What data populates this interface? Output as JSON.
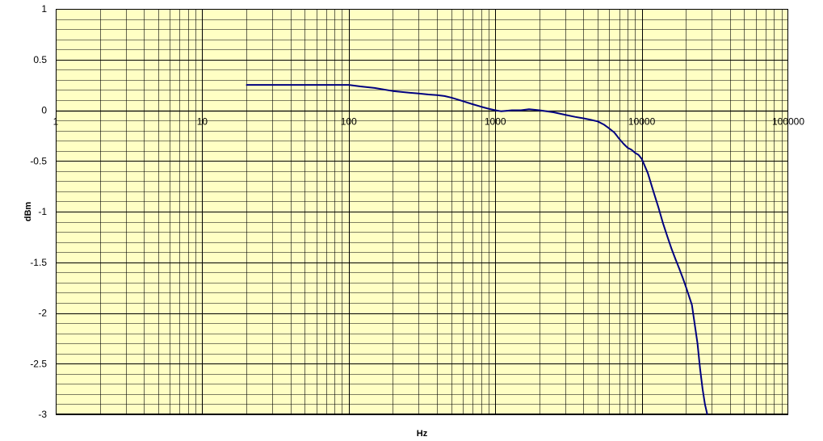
{
  "chart_data": {
    "type": "line",
    "x_scale": "log",
    "xlabel": "Hz",
    "ylabel": "dBm",
    "xlim": [
      1,
      100000
    ],
    "ylim": [
      -3,
      1
    ],
    "x_ticks": [
      1,
      10,
      100,
      1000,
      10000,
      100000
    ],
    "x_tick_labels": [
      "1",
      "10",
      "100",
      "1000",
      "10000",
      "100000"
    ],
    "y_ticks": [
      1,
      0.5,
      0,
      -0.5,
      -1,
      -1.5,
      -2,
      -2.5,
      -3
    ],
    "y_tick_labels": [
      "1",
      "0.5",
      "0",
      "-0.5",
      "-1",
      "-1.5",
      "-2",
      "-2.5",
      "-3"
    ],
    "y_minor_step": 0.1,
    "grid": true,
    "legend": "none",
    "plot_background": "#ffffc4",
    "grid_color": "#000000",
    "series": [
      {
        "color": "#000080",
        "x": [
          20,
          30,
          50,
          70,
          100,
          120,
          150,
          200,
          250,
          300,
          350,
          400,
          450,
          500,
          600,
          700,
          800,
          900,
          1000,
          1100,
          1200,
          1300,
          1500,
          1700,
          2000,
          2500,
          3000,
          3500,
          4000,
          4500,
          5000,
          5500,
          6000,
          6500,
          7000,
          7500,
          8000,
          8500,
          9000,
          9500,
          10000,
          11000,
          12000,
          13000,
          14000,
          15000,
          16000,
          17000,
          18000,
          19000,
          20000,
          22000,
          24000,
          25000,
          26000,
          27000,
          28000
        ],
        "y": [
          0.25,
          0.25,
          0.25,
          0.25,
          0.25,
          0.235,
          0.22,
          0.19,
          0.175,
          0.165,
          0.155,
          0.15,
          0.14,
          0.125,
          0.09,
          0.06,
          0.035,
          0.015,
          0.0,
          -0.01,
          -0.005,
          0.0,
          0.0,
          0.01,
          0.0,
          -0.02,
          -0.045,
          -0.065,
          -0.08,
          -0.095,
          -0.11,
          -0.14,
          -0.18,
          -0.22,
          -0.28,
          -0.33,
          -0.37,
          -0.39,
          -0.42,
          -0.44,
          -0.48,
          -0.62,
          -0.8,
          -0.96,
          -1.12,
          -1.25,
          -1.37,
          -1.47,
          -1.56,
          -1.65,
          -1.74,
          -1.92,
          -2.3,
          -2.55,
          -2.75,
          -2.9,
          -3.0
        ]
      }
    ]
  }
}
